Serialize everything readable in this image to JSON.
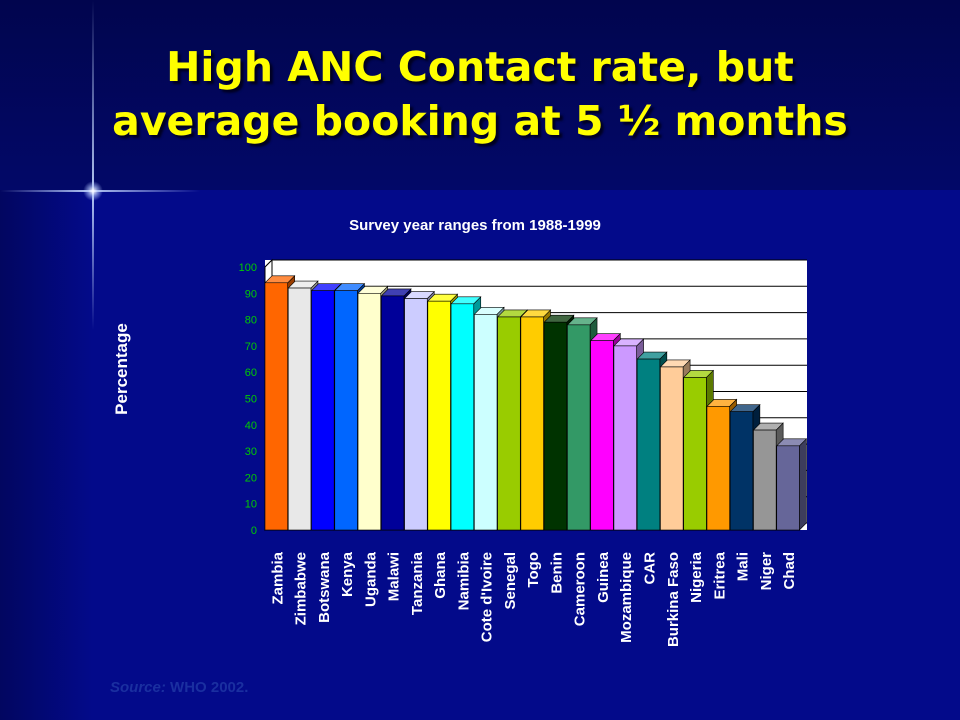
{
  "slide": {
    "title_line1": "High ANC Contact rate, but",
    "title_line2": "average booking at 5 ½ months",
    "source_label": "Source:",
    "source_text": "WHO 2002."
  },
  "chart_data": {
    "type": "bar",
    "title": "Survey year ranges from 1988-1999",
    "ylabel": "Percentage",
    "xlabel": "",
    "ylim": [
      0,
      100
    ],
    "yticks": [
      0,
      10,
      20,
      30,
      40,
      50,
      60,
      70,
      80,
      90,
      100
    ],
    "grid": true,
    "legend": "none",
    "categories": [
      "Zambia",
      "Zimbabwe",
      "Botswana",
      "Kenya",
      "Uganda",
      "Malawi",
      "Tanzania",
      "Ghana",
      "Namibia",
      "Cote d'Ivoire",
      "Senegal",
      "Togo",
      "Benin",
      "Cameroon",
      "Guinea",
      "Mozambique",
      "CAR",
      "Burkina Faso",
      "Nigeria",
      "Eritrea",
      "Mali",
      "Niger",
      "Chad"
    ],
    "values": [
      94,
      92,
      91,
      91,
      90,
      89,
      88,
      87,
      86,
      82,
      81,
      81,
      79,
      78,
      72,
      70,
      65,
      62,
      58,
      47,
      45,
      38,
      32
    ],
    "colors": [
      "#ff6600",
      "#e8e8e8",
      "#0000ff",
      "#0066ff",
      "#ffffcc",
      "#000099",
      "#ccccff",
      "#ffff00",
      "#00ffff",
      "#ccffff",
      "#99cc00",
      "#ffcc00",
      "#003300",
      "#339966",
      "#ff00ff",
      "#cc99ff",
      "#008080",
      "#ffcc99",
      "#99cc00",
      "#ff9900",
      "#003366",
      "#969696",
      "#666699"
    ]
  }
}
